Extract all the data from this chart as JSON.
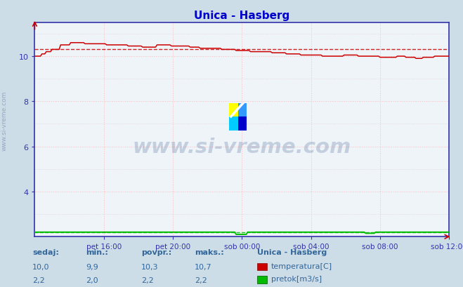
{
  "title": "Unica - Hasberg",
  "title_color": "#0000cc",
  "bg_color": "#ccdde8",
  "plot_bg_color": "#eef4f8",
  "ylim_min": 2.0,
  "ylim_max": 11.5,
  "yticks": [
    4,
    6,
    8,
    10
  ],
  "xlim_min": 0,
  "xlim_max": 288,
  "xtick_positions": [
    48,
    96,
    144,
    192,
    240,
    288
  ],
  "xtick_labels": [
    "pet 16:00",
    "pet 20:00",
    "sob 00:00",
    "sob 04:00",
    "sob 08:00",
    "sob 12:00"
  ],
  "temp_color": "#cc0000",
  "flow_color": "#00bb00",
  "temp_avg": 10.3,
  "flow_avg": 2.2,
  "temp_min": 9.9,
  "temp_max": 10.7,
  "flow_min": 2.0,
  "flow_max": 2.2,
  "temp_current": 10.0,
  "flow_current": 2.2,
  "grid_color": "#ffbbbb",
  "grid_color2": "#ddccdd",
  "axis_color": "#3333aa",
  "tick_color": "#336699",
  "legend_title": "Unica - Hasberg",
  "legend_label1": "temperatura[C]",
  "legend_label2": "pretok[m3/s]",
  "watermark": "www.si-vreme.com",
  "watermark_color": "#1a3f7a",
  "side_text": "www.si-vreme.com",
  "stat_label_color": "#336699",
  "stat_labels": [
    "sedaj:",
    "min.:",
    "povpr.:",
    "maks.:"
  ],
  "stat_values_temp": [
    "10,0",
    "9,9",
    "10,3",
    "10,7"
  ],
  "stat_values_flow": [
    "2,2",
    "2,0",
    "2,2",
    "2,2"
  ]
}
